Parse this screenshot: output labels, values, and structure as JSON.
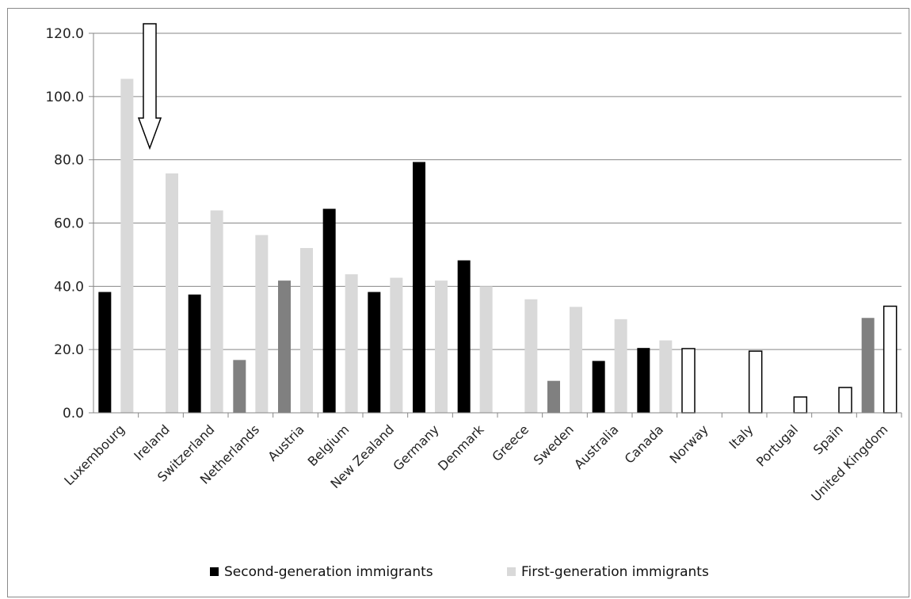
{
  "chart_data": {
    "type": "bar",
    "title": "",
    "xlabel": "",
    "ylabel": "",
    "ylim": [
      0,
      120
    ],
    "yticks": [
      "0.0",
      "20.0",
      "40.0",
      "60.0",
      "80.0",
      "100.0",
      "120.0"
    ],
    "grid": true,
    "legend_position": "bottom",
    "categories": [
      "Luxembourg",
      "Ireland",
      "Switzerland",
      "Netherlands",
      "Austria",
      "Belgium",
      "New Zealand",
      "Germany",
      "Denmark",
      "Greece",
      "Sweden",
      "Australia",
      "Canada",
      "Norway",
      "Italy",
      "Portugal",
      "Spain",
      "United Kingdom"
    ],
    "series": [
      {
        "name": "Second-generation immigrants",
        "values": [
          38.2,
          null,
          37.4,
          16.7,
          41.8,
          64.5,
          38.2,
          79.3,
          48.2,
          null,
          10.1,
          16.4,
          20.5,
          20.3,
          null,
          null,
          null,
          30.0
        ],
        "color": "#000000",
        "alt_color": "#808080",
        "alt_color_categories": [
          "Netherlands",
          "Austria",
          "Sweden",
          "United Kingdom"
        ],
        "outline_categories": [
          "Norway"
        ]
      },
      {
        "name": "First-generation immigrants",
        "values": [
          105.6,
          75.7,
          64.0,
          56.2,
          52.1,
          43.8,
          42.7,
          41.8,
          40.0,
          35.9,
          33.5,
          29.6,
          22.9,
          null,
          19.5,
          5.0,
          8.0,
          33.7
        ],
        "color": "#d9d9d9",
        "outline_categories": [
          "Italy",
          "Portugal",
          "Spain",
          "United Kingdom"
        ]
      }
    ],
    "annotation": {
      "type": "down-arrow",
      "points_to": "Ireland"
    },
    "colors": {
      "grid": "#878787",
      "axis": "#878787",
      "outline_fill": "#ffffff"
    }
  }
}
